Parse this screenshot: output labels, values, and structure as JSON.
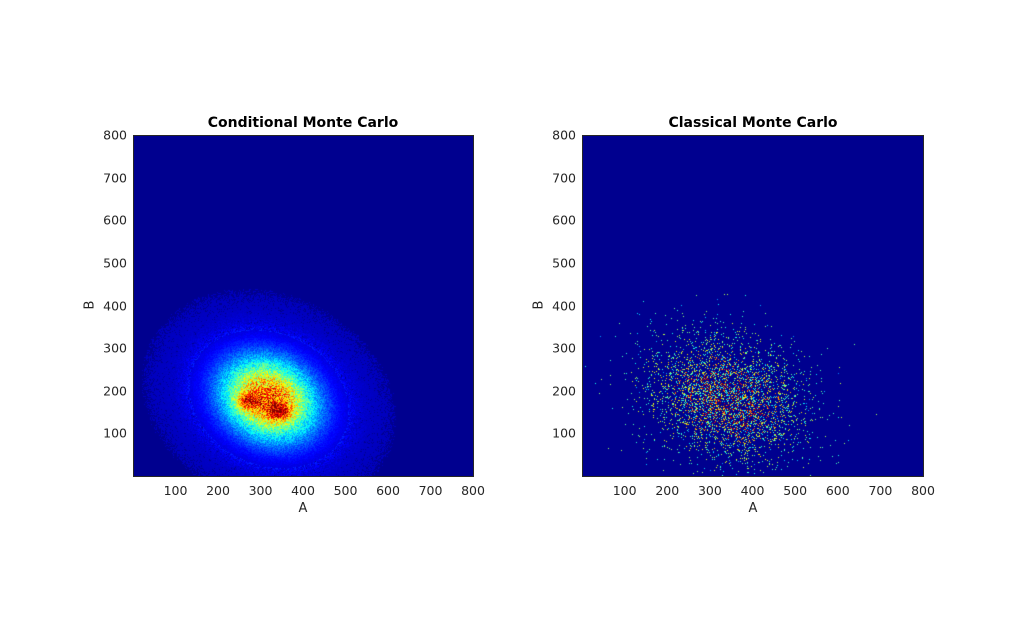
{
  "chart_data": [
    {
      "type": "heatmap",
      "title": "Conditional Monte Carlo",
      "xlabel": "A",
      "ylabel": "B",
      "xlim": [
        0,
        800
      ],
      "ylim": [
        0,
        800
      ],
      "xticks": [
        "100",
        "200",
        "300",
        "400",
        "500",
        "600",
        "700",
        "800"
      ],
      "yticks": [
        "100",
        "200",
        "300",
        "400",
        "500",
        "600",
        "700",
        "800"
      ],
      "colormap": "jet",
      "background_color": "#00008f",
      "density": {
        "center": [
          320,
          180
        ],
        "spread": [
          75,
          65
        ],
        "peak_locations": [
          [
            270,
            175
          ],
          [
            345,
            150
          ]
        ],
        "extent": {
          "x": [
            150,
            620
          ],
          "y": [
            20,
            420
          ]
        },
        "style": "smooth"
      },
      "grid": false
    },
    {
      "type": "heatmap",
      "title": "Classical Monte Carlo",
      "xlabel": "A",
      "ylabel": "B",
      "xlim": [
        0,
        800
      ],
      "ylim": [
        0,
        800
      ],
      "xticks": [
        "100",
        "200",
        "300",
        "400",
        "500",
        "600",
        "700",
        "800"
      ],
      "yticks": [
        "100",
        "200",
        "300",
        "400",
        "500",
        "600",
        "700",
        "800"
      ],
      "colormap": "jet",
      "background_color": "#00008f",
      "density": {
        "center": [
          340,
          180
        ],
        "spread": [
          95,
          75
        ],
        "extent": {
          "x": [
            130,
            650
          ],
          "y": [
            20,
            470
          ]
        },
        "style": "sparse-points"
      },
      "grid": false
    }
  ]
}
